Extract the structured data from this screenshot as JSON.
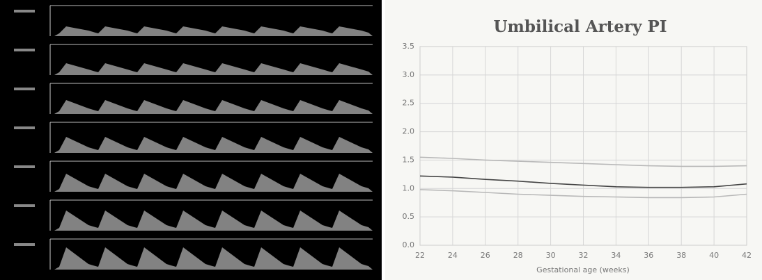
{
  "chart_data": {
    "type": "line",
    "title": "Umbilical Artery PI",
    "x_label": "Gestational age (weeks)",
    "x": [
      22,
      24,
      26,
      28,
      30,
      32,
      34,
      36,
      38,
      40,
      42
    ],
    "series": [
      {
        "color": "#b8b8b8",
        "values": [
          1.55,
          1.53,
          1.5,
          1.48,
          1.46,
          1.44,
          1.42,
          1.4,
          1.39,
          1.39,
          1.4
        ]
      },
      {
        "color": "#444444",
        "values": [
          1.22,
          1.2,
          1.16,
          1.13,
          1.09,
          1.06,
          1.03,
          1.02,
          1.02,
          1.03,
          1.08
        ]
      },
      {
        "color": "#b8b8b8",
        "values": [
          0.98,
          0.96,
          0.93,
          0.9,
          0.88,
          0.86,
          0.85,
          0.84,
          0.84,
          0.85,
          0.9
        ]
      }
    ],
    "xlim": [
      22,
      42
    ],
    "xticks": [
      22,
      24,
      26,
      28,
      30,
      32,
      34,
      36,
      38,
      40,
      42
    ],
    "ylim": [
      0,
      3.5
    ],
    "yticks": [
      {
        "value": 0,
        "label": "0.0"
      },
      0.5,
      {
        "value": 1,
        "label": "1.0"
      },
      1.5,
      {
        "value": 2,
        "label": "2.0"
      },
      2.5,
      {
        "value": 3,
        "label": "3.0"
      },
      3.5
    ],
    "grid": true
  }
}
